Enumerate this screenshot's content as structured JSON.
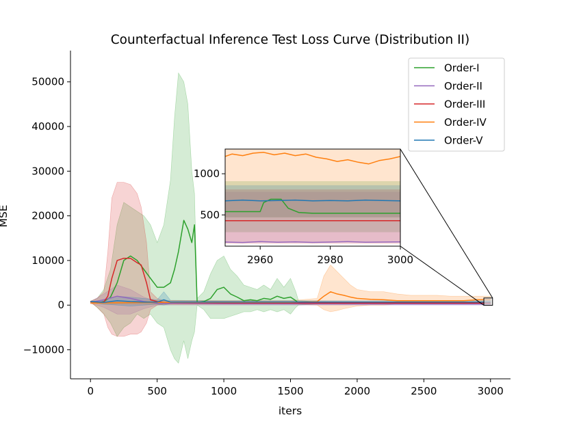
{
  "chart_data": {
    "type": "line",
    "title": "Counterfactual Inference Test Loss Curve (Distribution II)",
    "xlabel": "iters",
    "ylabel": "MSE",
    "xlim": [
      -150,
      3150
    ],
    "ylim": [
      -16500,
      57000
    ],
    "x_ticks": [
      0,
      500,
      1000,
      1500,
      2000,
      2500,
      3000
    ],
    "y_ticks": [
      -10000,
      0,
      10000,
      20000,
      30000,
      40000,
      50000
    ],
    "x_tick_labels": [
      "0",
      "500",
      "1000",
      "1500",
      "2000",
      "2500",
      "3000"
    ],
    "y_tick_labels": [
      "−10000",
      "0",
      "10000",
      "20000",
      "30000",
      "40000",
      "50000"
    ],
    "legend_position": "upper-right",
    "grid": false,
    "series": [
      {
        "name": "Order-I",
        "color": "#2ca02c",
        "x": [
          0,
          50,
          100,
          150,
          200,
          250,
          300,
          350,
          400,
          450,
          500,
          550,
          600,
          630,
          660,
          700,
          730,
          760,
          780,
          800,
          850,
          900,
          950,
          1000,
          1050,
          1100,
          1150,
          1200,
          1250,
          1300,
          1350,
          1400,
          1450,
          1500,
          1540,
          1560,
          1700,
          2000,
          2500,
          3000
        ],
        "mean": [
          800,
          500,
          800,
          1800,
          5000,
          10000,
          11000,
          10000,
          8000,
          6000,
          4000,
          4000,
          5000,
          8000,
          12000,
          19000,
          17000,
          14000,
          18000,
          600,
          800,
          1500,
          3500,
          4000,
          2500,
          1800,
          1000,
          1200,
          1000,
          1500,
          1300,
          2000,
          1500,
          1800,
          1000,
          500,
          500,
          500,
          500,
          500
        ],
        "upper": [
          900,
          1500,
          3500,
          8000,
          18000,
          23000,
          22000,
          21000,
          20000,
          18000,
          14000,
          18000,
          28000,
          42000,
          52000,
          50000,
          45000,
          30000,
          25000,
          1500,
          3000,
          7000,
          10000,
          11000,
          8000,
          6500,
          4500,
          4000,
          3500,
          4500,
          3500,
          6000,
          4000,
          6000,
          3000,
          1000,
          800,
          800,
          800,
          800
        ],
        "lower": [
          700,
          -500,
          -2000,
          -4000,
          -7000,
          -5000,
          -4000,
          -2000,
          -3000,
          -2000,
          -4000,
          -5000,
          -10000,
          -12000,
          -13000,
          -8000,
          -12000,
          -8000,
          -6000,
          0,
          -1000,
          -3000,
          -3000,
          -3000,
          -2500,
          -2000,
          -1500,
          -1500,
          -1000,
          -1500,
          -1000,
          -1500,
          -1000,
          -2000,
          -500,
          0,
          200,
          200,
          200,
          200
        ]
      },
      {
        "name": "Order-II",
        "color": "#9467bd",
        "x": [
          0,
          100,
          200,
          300,
          400,
          500,
          1000,
          2000,
          3000
        ],
        "mean": [
          600,
          1200,
          2000,
          1500,
          800,
          400,
          300,
          250,
          250
        ],
        "upper": [
          800,
          2500,
          4500,
          3500,
          1800,
          800,
          600,
          500,
          500
        ],
        "lower": [
          400,
          -500,
          -2000,
          -2000,
          -800,
          0,
          0,
          0,
          0
        ]
      },
      {
        "name": "Order-III",
        "color": "#d62728",
        "x": [
          0,
          50,
          100,
          130,
          160,
          200,
          250,
          300,
          350,
          380,
          420,
          450,
          500,
          550,
          1000,
          2000,
          3000
        ],
        "mean": [
          800,
          600,
          700,
          2000,
          6000,
          10000,
          10500,
          10500,
          9500,
          9000,
          5000,
          1200,
          800,
          600,
          500,
          450,
          450
        ],
        "upper": [
          900,
          1500,
          3000,
          12000,
          24000,
          27500,
          27500,
          27000,
          25000,
          22000,
          14000,
          3000,
          1500,
          1000,
          900,
          800,
          800
        ],
        "lower": [
          700,
          -500,
          -2000,
          -5000,
          -6500,
          -7000,
          -7000,
          -6500,
          -6500,
          -6000,
          -4000,
          -1000,
          0,
          200,
          200,
          200,
          200
        ]
      },
      {
        "name": "Order-IV",
        "color": "#ff7f0e",
        "x": [
          0,
          500,
          1000,
          1500,
          1700,
          1750,
          1800,
          1850,
          1900,
          1950,
          2000,
          2100,
          2200,
          2300,
          2400,
          2500,
          2600,
          2700,
          2800,
          2900,
          3000
        ],
        "mean": [
          500,
          600,
          600,
          600,
          800,
          2000,
          3000,
          2500,
          2200,
          1800,
          1500,
          1300,
          1200,
          1000,
          1000,
          1000,
          1000,
          1000,
          1000,
          1200,
          1200
        ],
        "upper": [
          700,
          1000,
          1000,
          1000,
          1500,
          6500,
          9000,
          7500,
          6000,
          4500,
          3500,
          3000,
          3000,
          2500,
          2200,
          2200,
          2200,
          2000,
          2000,
          2000,
          2000
        ],
        "lower": [
          300,
          200,
          200,
          200,
          0,
          -1000,
          -1500,
          -1200,
          -800,
          -500,
          -200,
          0,
          0,
          200,
          200,
          200,
          200,
          300,
          300,
          400,
          400
        ]
      },
      {
        "name": "Order-V",
        "color": "#1f77b4",
        "x": [
          0,
          100,
          200,
          300,
          400,
          500,
          550,
          600,
          1000,
          2000,
          3000
        ],
        "mean": [
          800,
          600,
          1000,
          800,
          700,
          700,
          1200,
          700,
          700,
          700,
          700
        ],
        "upper": [
          900,
          1000,
          2000,
          1800,
          1500,
          1200,
          3000,
          1100,
          1000,
          1000,
          1000
        ],
        "lower": [
          700,
          200,
          0,
          -200,
          0,
          200,
          0,
          300,
          400,
          400,
          400
        ]
      }
    ],
    "inset": {
      "xlim": [
        2950,
        3000
      ],
      "ylim": [
        120,
        1300
      ],
      "x_ticks": [
        2960,
        2980,
        3000
      ],
      "y_ticks": [
        500,
        1000
      ],
      "x_tick_labels": [
        "2960",
        "2980",
        "3000"
      ],
      "y_tick_labels": [
        "500",
        "1000"
      ],
      "series": [
        {
          "name": "Order-I",
          "color": "#2ca02c",
          "upper": 910,
          "lower": 290,
          "x": [
            2950,
            2960,
            2961,
            2963,
            2966,
            2968,
            2971,
            2975,
            3000
          ],
          "y": [
            540,
            540,
            650,
            690,
            690,
            580,
            530,
            520,
            520
          ]
        },
        {
          "name": "Order-II",
          "color": "#9467bd",
          "upper": 780,
          "lower": 165,
          "x": [
            2950,
            2955,
            2960,
            2965,
            2970,
            2975,
            2980,
            2985,
            2990,
            2995,
            3000
          ],
          "y": [
            170,
            165,
            175,
            168,
            172,
            166,
            170,
            175,
            168,
            170,
            172
          ]
        },
        {
          "name": "Order-III",
          "color": "#d62728",
          "upper": 810,
          "lower": 150,
          "x": [
            2950,
            3000
          ],
          "y": [
            430,
            430
          ]
        },
        {
          "name": "Order-IV",
          "color": "#ff7f0e",
          "upper": 1300,
          "lower": 470,
          "x": [
            2950,
            2952,
            2955,
            2958,
            2961,
            2964,
            2967,
            2970,
            2973,
            2976,
            2979,
            2982,
            2985,
            2988,
            2991,
            2994,
            2997,
            3000
          ],
          "y": [
            1210,
            1240,
            1220,
            1250,
            1260,
            1230,
            1250,
            1220,
            1240,
            1200,
            1180,
            1150,
            1170,
            1140,
            1120,
            1160,
            1180,
            1210
          ]
        },
        {
          "name": "Order-V",
          "color": "#1f77b4",
          "upper": 860,
          "lower": 470,
          "x": [
            2950,
            2955,
            2960,
            2965,
            2970,
            2975,
            2980,
            2985,
            2990,
            2995,
            3000
          ],
          "y": [
            670,
            680,
            670,
            675,
            680,
            670,
            675,
            670,
            680,
            675,
            670
          ]
        }
      ]
    }
  }
}
